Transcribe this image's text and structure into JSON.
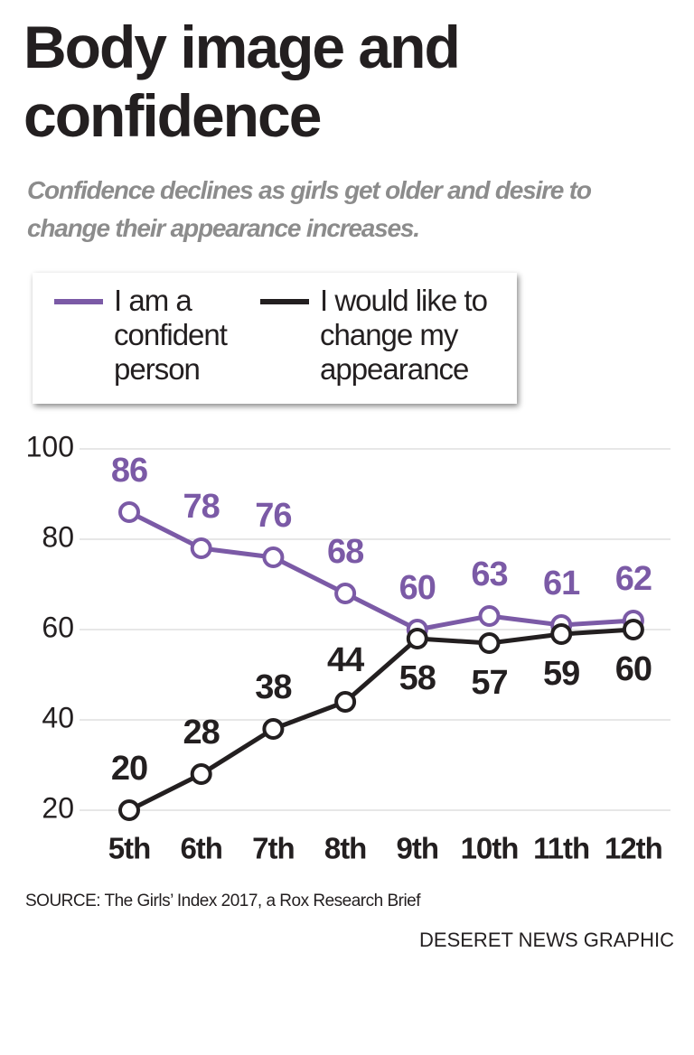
{
  "chart_data": {
    "type": "line",
    "title": "Body image and confidence",
    "subtitle": "Confidence declines as girls get older and desire to change their appearance increases.",
    "categories": [
      "5th",
      "6th",
      "7th",
      "8th",
      "9th",
      "10th",
      "11th",
      "12th"
    ],
    "series": [
      {
        "name": "I am a confident person",
        "color": "#7b5aa6",
        "values": [
          86,
          78,
          76,
          68,
          60,
          63,
          61,
          62
        ]
      },
      {
        "name": "I would like to change my appearance",
        "color": "#231f20",
        "values": [
          20,
          28,
          38,
          44,
          58,
          57,
          59,
          60
        ]
      }
    ],
    "ylim": [
      20,
      100
    ],
    "yticks": [
      20,
      40,
      60,
      80,
      100
    ],
    "grid": true,
    "source": "SOURCE: The Girls’ Index 2017, a Rox Research Brief",
    "credit": "DESERET NEWS GRAPHIC"
  }
}
